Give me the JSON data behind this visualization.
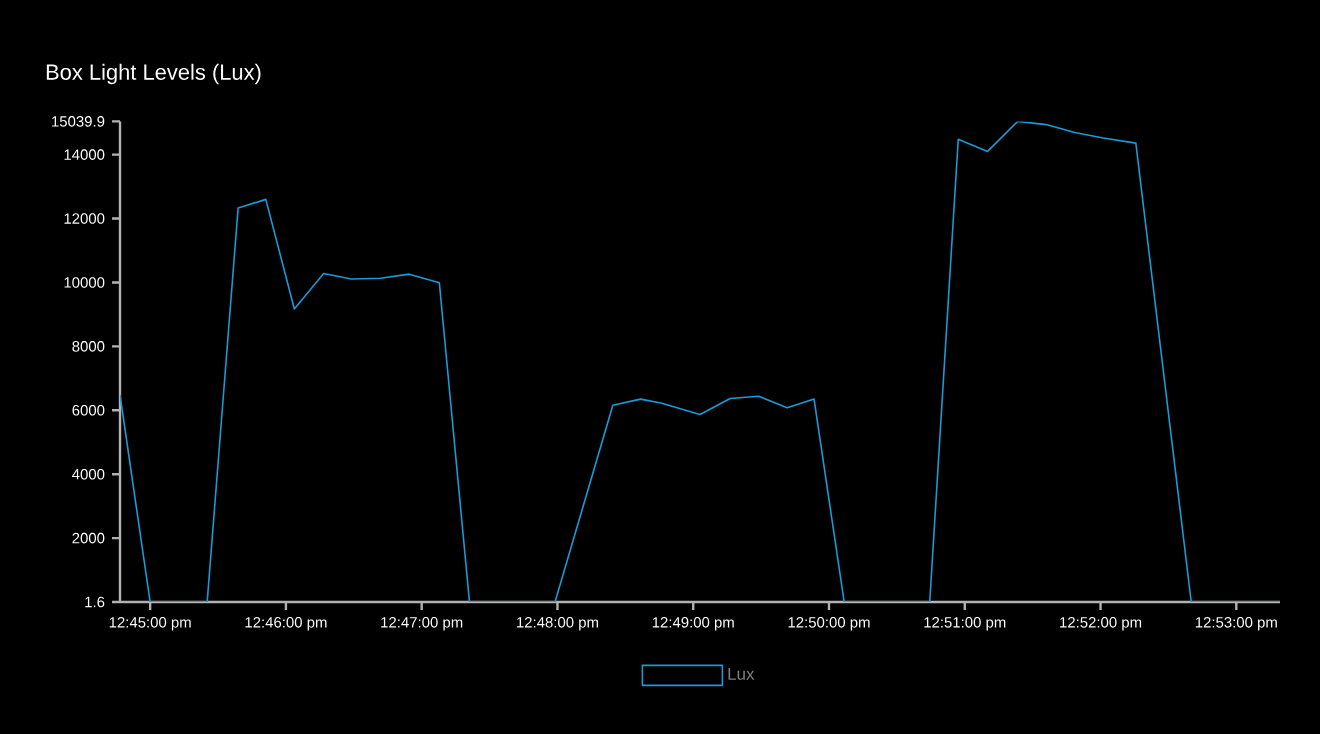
{
  "chart_data": {
    "type": "line",
    "title": "Box Light Levels (Lux)",
    "x": [
      12.7463,
      12.75,
      12.757,
      12.7608,
      12.7642,
      12.7677,
      12.7713,
      12.7747,
      12.7783,
      12.7818,
      12.7855,
      12.7892,
      12.7997,
      12.8068,
      12.8102,
      12.8127,
      12.8175,
      12.8212,
      12.8247,
      12.8282,
      12.8315,
      12.8352,
      12.8457,
      12.8492,
      12.8528,
      12.8565,
      12.86,
      12.8635,
      12.867,
      12.871,
      12.8778,
      12.8887
    ],
    "series": [
      {
        "name": "Lux",
        "color": "#1a9ad6",
        "values": [
          6480,
          1.6,
          1.6,
          12330,
          12600,
          9170,
          10280,
          10110,
          10130,
          10260,
          9990,
          1.6,
          1.6,
          6160,
          6350,
          6230,
          5870,
          6370,
          6440,
          6080,
          6350,
          1.6,
          1.6,
          14480,
          14100,
          15039.9,
          14940,
          14690,
          14520,
          14360,
          1.6,
          1.6
        ]
      }
    ],
    "xlim": [
      12.7463,
      12.8887
    ],
    "xticks": [
      {
        "value": 12.75,
        "label": "12:45:00 pm"
      },
      {
        "value": 12.766667,
        "label": "12:46:00 pm"
      },
      {
        "value": 12.783333,
        "label": "12:47:00 pm"
      },
      {
        "value": 12.8,
        "label": "12:48:00 pm"
      },
      {
        "value": 12.816667,
        "label": "12:49:00 pm"
      },
      {
        "value": 12.833333,
        "label": "12:50:00 pm"
      },
      {
        "value": 12.85,
        "label": "12:51:00 pm"
      },
      {
        "value": 12.866667,
        "label": "12:52:00 pm"
      },
      {
        "value": 12.883333,
        "label": "12:53:00 pm"
      }
    ],
    "ylim": [
      1.6,
      15039.9
    ],
    "yticks": [
      1.6,
      2000,
      4000,
      6000,
      8000,
      10000,
      12000,
      14000,
      15039.9
    ],
    "legend": "bottom",
    "grid": false,
    "line_style": "solid"
  }
}
